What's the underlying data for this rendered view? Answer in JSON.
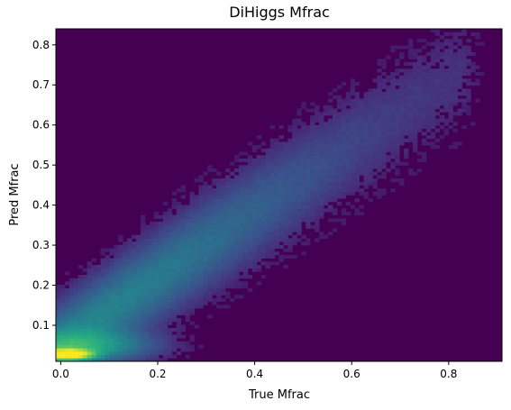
{
  "chart_data": {
    "type": "heatmap",
    "title": "DiHiggs Mfrac",
    "xlabel": "True Mfrac",
    "ylabel": "Pred Mfrac",
    "xlim": [
      -0.01,
      0.91
    ],
    "ylim": [
      0.01,
      0.84
    ],
    "xticks": [
      {
        "value": 0.0,
        "label": "0.0"
      },
      {
        "value": 0.2,
        "label": "0.2"
      },
      {
        "value": 0.4,
        "label": "0.4"
      },
      {
        "value": 0.6,
        "label": "0.6"
      },
      {
        "value": 0.8,
        "label": "0.8"
      }
    ],
    "yticks": [
      {
        "value": 0.1,
        "label": "0.1"
      },
      {
        "value": 0.2,
        "label": "0.2"
      },
      {
        "value": 0.3,
        "label": "0.3"
      },
      {
        "value": 0.4,
        "label": "0.4"
      },
      {
        "value": 0.5,
        "label": "0.5"
      },
      {
        "value": 0.6,
        "label": "0.6"
      },
      {
        "value": 0.7,
        "label": "0.7"
      },
      {
        "value": 0.8,
        "label": "0.8"
      }
    ],
    "bins": 100,
    "colormap": "viridis",
    "background_color": "#440154",
    "distribution": {
      "band": {
        "slope": 0.82,
        "intercept": 0.055,
        "width": 0.085
      },
      "low_mass_peak": {
        "x": 0.015,
        "y": 0.028,
        "sx": 0.045,
        "sy": 0.012,
        "peak": 1.0
      },
      "ridge_level": 0.22,
      "upper_x_extent": 0.82
    },
    "grid": false,
    "legend": "none"
  }
}
